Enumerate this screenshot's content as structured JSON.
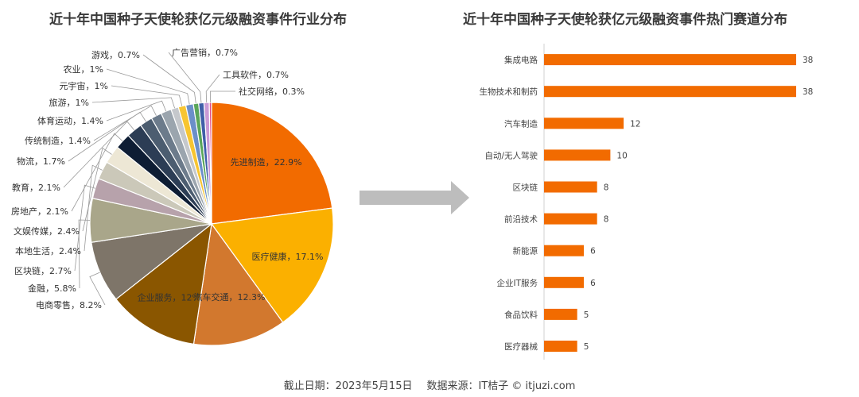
{
  "footer": {
    "cutoff": "截止日期：2023年5月15日",
    "source": "数据来源：IT桔子 © itjuzi.com"
  },
  "chart_data": [
    {
      "type": "pie",
      "title": "近十年中国种子天使轮获亿元级融资事件行业分布",
      "slices": [
        {
          "label": "先进制造",
          "value": 22.9,
          "display": "先进制造，22.9%",
          "color": "#f26b00"
        },
        {
          "label": "医疗健康",
          "value": 17.1,
          "display": "医疗健康，17.1%",
          "color": "#fbb000"
        },
        {
          "label": "汽车交通",
          "value": 12.3,
          "display": "汽车交通，12.3%",
          "color": "#d2782e"
        },
        {
          "label": "企业服务",
          "value": 12,
          "display": "企业服务，12%",
          "color": "#8a5600"
        },
        {
          "label": "电商零售",
          "value": 8.2,
          "display": "电商零售，8.2%",
          "color": "#7e7569"
        },
        {
          "label": "金融",
          "value": 5.8,
          "display": "金融，5.8%",
          "color": "#a9a68a"
        },
        {
          "label": "区块链",
          "value": 2.7,
          "display": "区块链，2.7%",
          "color": "#b7a2ab"
        },
        {
          "label": "本地生活",
          "value": 2.4,
          "display": "本地生活，2.4%",
          "color": "#cbc8b9"
        },
        {
          "label": "文娱传媒",
          "value": 2.4,
          "display": "文娱传媒，2.4%",
          "color": "#ede7d5"
        },
        {
          "label": "房地产",
          "value": 2.1,
          "display": "房地产，2.1%",
          "color": "#0e1d34"
        },
        {
          "label": "教育",
          "value": 2.1,
          "display": "教育，2.1%",
          "color": "#2c3d55"
        },
        {
          "label": "物流",
          "value": 1.7,
          "display": "物流，1.7%",
          "color": "#4c5d70"
        },
        {
          "label": "传统制造",
          "value": 1.4,
          "display": "传统制造，1.4%",
          "color": "#6c7b8b"
        },
        {
          "label": "体育运动",
          "value": 1.4,
          "display": "体育运动，1.4%",
          "color": "#9ba5ae"
        },
        {
          "label": "旅游",
          "value": 1,
          "display": "旅游，1%",
          "color": "#c5c8cc"
        },
        {
          "label": "元宇宙",
          "value": 1,
          "display": "元宇宙，1%",
          "color": "#f7c531"
        },
        {
          "label": "农业",
          "value": 1,
          "display": "农业，1%",
          "color": "#6b8fc9"
        },
        {
          "label": "游戏",
          "value": 0.7,
          "display": "游戏，0.7%",
          "color": "#5aa65a"
        },
        {
          "label": "广告营销",
          "value": 0.7,
          "display": "广告营销，0.7%",
          "color": "#3f5fa8"
        },
        {
          "label": "工具软件",
          "value": 0.7,
          "display": "工具软件，0.7%",
          "color": "#c99ad6"
        },
        {
          "label": "社交网络",
          "value": 0.3,
          "display": "社交网络，0.3%",
          "color": "#e34d8a"
        }
      ]
    },
    {
      "type": "bar",
      "orientation": "horizontal",
      "title": "近十年中国种子天使轮获亿元级融资事件热门赛道分布",
      "categories": [
        "集成电路",
        "生物技术和制药",
        "汽车制造",
        "自动/无人驾驶",
        "区块链",
        "前沿技术",
        "新能源",
        "企业IT服务",
        "食品饮料",
        "医疗器械"
      ],
      "values": [
        38,
        38,
        12,
        10,
        8,
        8,
        6,
        6,
        5,
        5
      ],
      "xlim": [
        0,
        38
      ],
      "bar_color": "#f26b00",
      "grid": false
    }
  ],
  "colors": {
    "arrow": "#bdbdbd",
    "leader_line": "#999999"
  }
}
